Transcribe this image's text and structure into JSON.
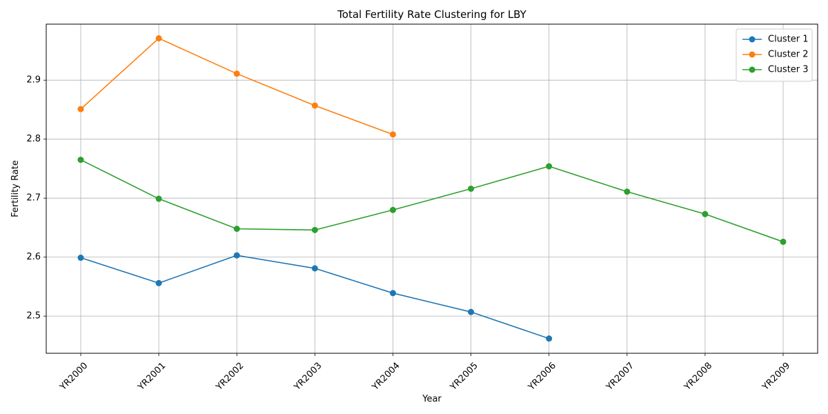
{
  "chart_data": {
    "type": "line",
    "title": "Total Fertility Rate Clustering for LBY",
    "xlabel": "Year",
    "ylabel": "Fertility Rate",
    "categories": [
      "YR2000",
      "YR2001",
      "YR2002",
      "YR2003",
      "YR2004",
      "YR2005",
      "YR2006",
      "YR2007",
      "YR2008",
      "YR2009"
    ],
    "ylim": [
      2.437,
      2.995
    ],
    "yticks": [
      2.5,
      2.6,
      2.7,
      2.8,
      2.9
    ],
    "grid": true,
    "legend_position": "top-right",
    "series": [
      {
        "name": "Cluster 1",
        "color": "#1f77b4",
        "values": [
          2.599,
          2.556,
          2.603,
          2.581,
          2.539,
          2.507,
          2.462,
          null,
          null,
          null
        ]
      },
      {
        "name": "Cluster 2",
        "color": "#ff7f0e",
        "values": [
          2.851,
          2.971,
          2.911,
          2.857,
          2.808,
          null,
          null,
          null,
          null,
          null
        ]
      },
      {
        "name": "Cluster 3",
        "color": "#2ca02c",
        "values": [
          2.765,
          2.699,
          2.648,
          2.646,
          2.68,
          2.716,
          2.754,
          2.711,
          2.673,
          2.626
        ]
      }
    ]
  }
}
